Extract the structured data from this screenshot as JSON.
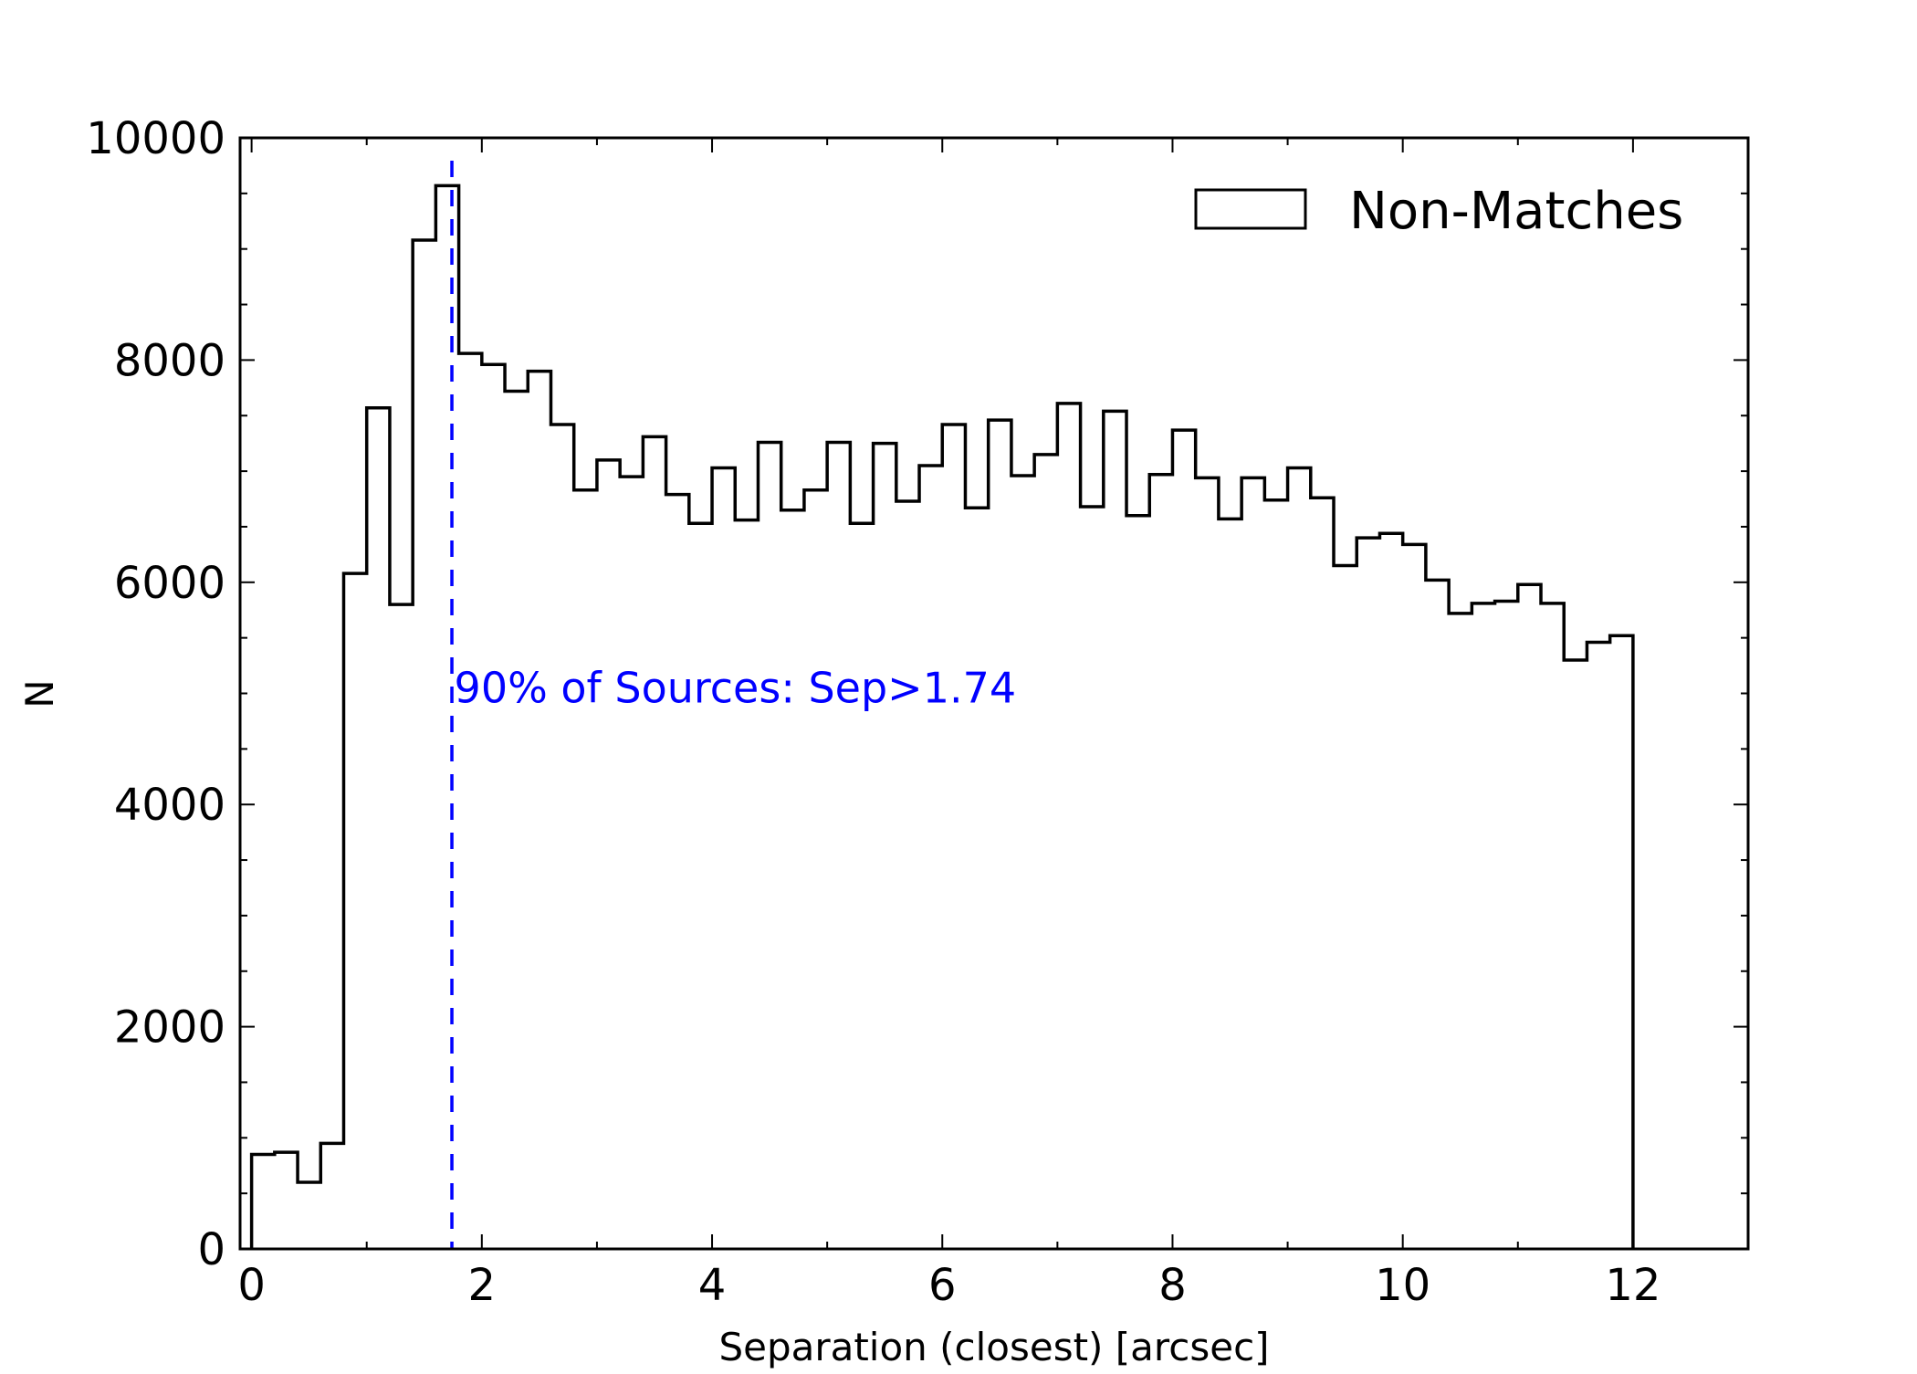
{
  "chart_data": {
    "type": "histogram",
    "title": "",
    "xlabel": "Separation (closest) [arcsec]",
    "ylabel": "N",
    "xlim": [
      -0.1,
      13.0
    ],
    "ylim": [
      0,
      10000
    ],
    "xticks": [
      0,
      2,
      4,
      6,
      8,
      10,
      12
    ],
    "yticks": [
      0,
      2000,
      4000,
      6000,
      8000,
      10000
    ],
    "xtick_labels": [
      "0",
      "2",
      "4",
      "6",
      "8",
      "10",
      "12"
    ],
    "ytick_labels": [
      "0",
      "2000",
      "4000",
      "6000",
      "8000",
      "10000"
    ],
    "grid": false,
    "legend_position": "top-right",
    "series": [
      {
        "name": "Non-Matches",
        "style": "step",
        "color": "#000000",
        "bin_width": 0.2,
        "bin_start": 0.0,
        "values": [
          850,
          870,
          600,
          950,
          6080,
          7570,
          5800,
          9080,
          9570,
          8060,
          7960,
          7720,
          7900,
          7420,
          6830,
          7100,
          6950,
          7310,
          6790,
          6530,
          7030,
          6560,
          7260,
          6650,
          6830,
          7260,
          6530,
          7250,
          6730,
          7050,
          7420,
          6670,
          7460,
          6960,
          7150,
          7610,
          6680,
          7540,
          6600,
          6970,
          7370,
          6940,
          6570,
          6940,
          6740,
          7030,
          6760,
          6150,
          6400,
          6440,
          6340,
          6020,
          5720,
          5810,
          5830,
          5980,
          5810,
          5300,
          5460,
          5520
        ]
      }
    ],
    "vline": {
      "x": 1.74,
      "color": "#0000ff",
      "style": "dashed"
    },
    "annotation": {
      "text": "90% of Sources: Sep>1.74",
      "x": 1.76,
      "y": 5050,
      "color": "#0000ff"
    }
  }
}
